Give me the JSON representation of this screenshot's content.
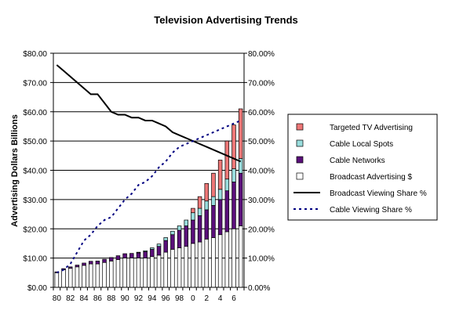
{
  "chart_data": {
    "type": "bar",
    "title": "Television Advertising Trends",
    "xlabel": "",
    "ylabel": "Advertising Dollars Billions",
    "y2label": "",
    "ylim": [
      0,
      80
    ],
    "y2lim": [
      0,
      80
    ],
    "y_ticks": [
      "$0.00",
      "$10.00",
      "$20.00",
      "$30.00",
      "$40.00",
      "$50.00",
      "$60.00",
      "$70.00",
      "$80.00"
    ],
    "y2_ticks": [
      "0.00%",
      "10.00%",
      "20.00%",
      "30.00%",
      "40.00%",
      "50.00%",
      "60.00%",
      "70.00%",
      "80.00%"
    ],
    "x_tick_labels": [
      "80",
      "82",
      "84",
      "86",
      "88",
      "90",
      "92",
      "94",
      "96",
      "98",
      "0",
      "2",
      "4",
      "6"
    ],
    "grid": "horizontal",
    "legend_position": "right",
    "categories": [
      "80",
      "81",
      "82",
      "83",
      "84",
      "85",
      "86",
      "87",
      "88",
      "89",
      "90",
      "91",
      "92",
      "93",
      "94",
      "95",
      "96",
      "97",
      "98",
      "99",
      "0",
      "1",
      "2",
      "3",
      "4",
      "5",
      "6",
      "7"
    ],
    "stacked_series": [
      {
        "name": "Broadcast Advertising $",
        "color": "#ffffff",
        "values": [
          5,
          6,
          6.5,
          7,
          7.5,
          8,
          8,
          8.5,
          9,
          9.5,
          10,
          10,
          10,
          10,
          10.5,
          11,
          12,
          13,
          13.5,
          14,
          15,
          15.5,
          16.5,
          17,
          18,
          19,
          20,
          21
        ]
      },
      {
        "name": "Cable Networks",
        "color": "#5a0f7a",
        "values": [
          0.3,
          0.4,
          0.5,
          0.6,
          0.8,
          0.9,
          1,
          1.1,
          1.2,
          1.3,
          1.5,
          1.6,
          1.8,
          2.2,
          2.5,
          3,
          4,
          5,
          6,
          7,
          8,
          9,
          10,
          11,
          12,
          14,
          16,
          18
        ]
      },
      {
        "name": "Cable Local Spots",
        "color": "#99dddd",
        "values": [
          0,
          0,
          0,
          0,
          0,
          0,
          0,
          0,
          0,
          0,
          0,
          0,
          0.2,
          0.3,
          0.5,
          0.8,
          1,
          1.2,
          1.5,
          2,
          2.5,
          2.5,
          3,
          3,
          3.5,
          4,
          4.5,
          5
        ]
      },
      {
        "name": "Targeted TV Advertising",
        "color": "#ee7777",
        "values": [
          0,
          0,
          0,
          0,
          0,
          0,
          0,
          0,
          0,
          0,
          0,
          0,
          0,
          0,
          0,
          0,
          0,
          0,
          0,
          0,
          1.5,
          4,
          6,
          8,
          10,
          13,
          15,
          17
        ]
      }
    ],
    "line_series": [
      {
        "name": "Broadcast Viewing Share %",
        "color": "#000000",
        "style": "solid",
        "values": [
          76,
          74,
          72,
          70,
          68,
          66,
          66,
          63,
          60,
          59,
          59,
          58,
          58,
          57,
          57,
          56,
          55,
          53,
          52,
          51,
          50,
          49,
          48,
          47,
          46,
          45,
          44,
          43
        ]
      },
      {
        "name": "Cable Viewing Share %",
        "color": "#000080",
        "style": "dotted",
        "values": [
          5,
          6,
          8,
          12,
          16,
          18,
          21,
          23,
          24,
          27,
          30,
          32,
          35,
          36,
          38,
          41,
          43,
          46,
          48,
          49,
          50,
          51,
          52,
          53,
          54,
          55,
          56,
          57
        ]
      }
    ]
  }
}
